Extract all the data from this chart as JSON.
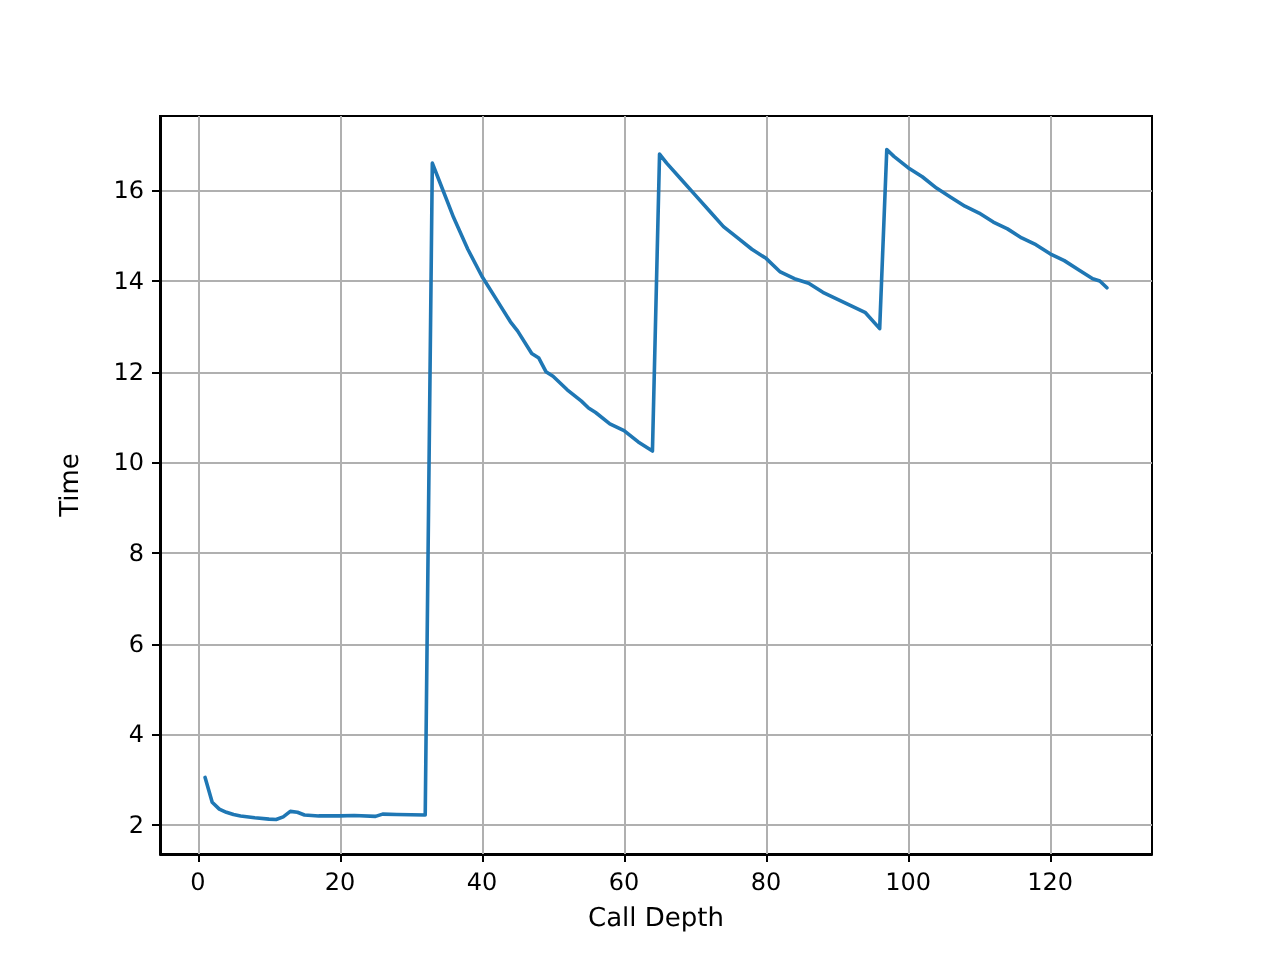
{
  "chart_data": {
    "type": "line",
    "xlabel": "Call Depth",
    "ylabel": "Time",
    "xlim": [
      -5.35,
      134.35
    ],
    "ylim": [
      1.36,
      17.64
    ],
    "xticks": [
      0,
      20,
      40,
      60,
      80,
      100,
      120
    ],
    "yticks": [
      2,
      4,
      6,
      8,
      10,
      12,
      14,
      16
    ],
    "grid": true,
    "marker": "none",
    "line_style": "solid",
    "series": [
      {
        "color": "#1f77b4",
        "x": [
          1,
          2,
          3,
          4,
          5,
          6,
          8,
          10,
          11,
          12,
          13,
          14,
          15,
          17,
          20,
          22,
          25,
          26,
          28,
          32,
          33,
          34,
          35,
          36,
          38,
          40,
          42,
          44,
          45,
          47,
          48,
          49,
          50,
          52,
          54,
          55,
          56,
          58,
          60,
          62,
          64,
          65,
          66,
          68,
          70,
          72,
          74,
          76,
          78,
          80,
          82,
          84,
          86,
          88,
          90,
          92,
          94,
          96,
          97,
          98,
          100,
          102,
          104,
          106,
          108,
          110,
          112,
          114,
          116,
          118,
          120,
          122,
          124,
          126,
          127,
          128
        ],
        "values": [
          3.05,
          2.5,
          2.35,
          2.28,
          2.23,
          2.2,
          2.16,
          2.13,
          2.12,
          2.18,
          2.3,
          2.28,
          2.22,
          2.2,
          2.2,
          2.21,
          2.19,
          2.24,
          2.23,
          2.22,
          16.6,
          16.2,
          15.8,
          15.4,
          14.7,
          14.1,
          13.6,
          13.1,
          12.9,
          12.4,
          12.3,
          12.0,
          11.9,
          11.6,
          11.35,
          11.2,
          11.1,
          10.85,
          10.7,
          10.45,
          10.25,
          16.8,
          16.6,
          16.25,
          15.9,
          15.55,
          15.2,
          14.95,
          14.7,
          14.5,
          14.2,
          14.05,
          13.95,
          13.75,
          13.6,
          13.45,
          13.3,
          12.95,
          16.9,
          16.75,
          16.5,
          16.3,
          16.05,
          15.85,
          15.65,
          15.5,
          15.3,
          15.15,
          14.95,
          14.8,
          14.6,
          14.45,
          14.25,
          14.05,
          14.0,
          13.85
        ]
      }
    ]
  }
}
